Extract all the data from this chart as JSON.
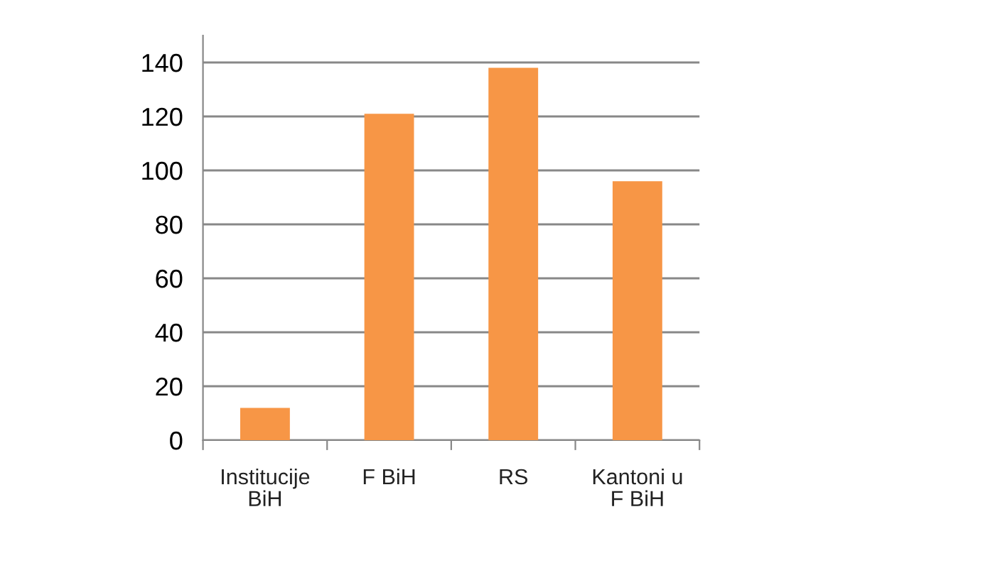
{
  "chart_data": {
    "type": "bar",
    "categories": [
      "Institucije\nBiH",
      "F BiH",
      "RS",
      "Kantoni u\nF BiH"
    ],
    "values": [
      12,
      121,
      138,
      96
    ],
    "color": "#f79646",
    "ylim": [
      0,
      150
    ],
    "yticks": [
      0,
      20,
      40,
      60,
      80,
      100,
      120,
      140
    ],
    "grid": "y"
  }
}
